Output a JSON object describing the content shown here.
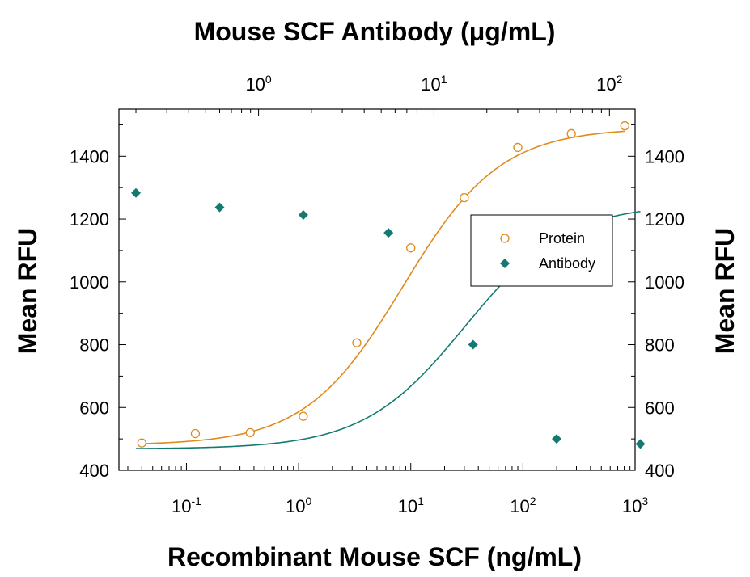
{
  "chart_data": {
    "type": "scatter",
    "title": "Mouse SCF Antibody (μg/mL)",
    "xlabel": "Recombinant Mouse SCF (ng/mL)",
    "ylabel": "Mean RFU",
    "ylabel_right": "Mean RFU",
    "x_scale": "log",
    "top_x_scale": "log",
    "xlim": [
      0.025,
      1000
    ],
    "top_xlim": [
      0.16,
      140
    ],
    "ylim": [
      400,
      1550
    ],
    "bottom_x_ticks": [
      {
        "value": 0.1,
        "base": "10",
        "exp": "-1"
      },
      {
        "value": 1,
        "base": "10",
        "exp": "0"
      },
      {
        "value": 10,
        "base": "10",
        "exp": "1"
      },
      {
        "value": 100,
        "base": "10",
        "exp": "2"
      },
      {
        "value": 1000,
        "base": "10",
        "exp": "3"
      }
    ],
    "top_x_ticks": [
      {
        "value": 1,
        "base": "10",
        "exp": "0"
      },
      {
        "value": 10,
        "base": "10",
        "exp": "1"
      },
      {
        "value": 100,
        "base": "10",
        "exp": "2"
      }
    ],
    "y_ticks": [
      "400",
      "600",
      "800",
      "1000",
      "1200",
      "1400"
    ],
    "legend_position": "right",
    "grid": false,
    "series": [
      {
        "name": "Protein",
        "axis": "bottom",
        "marker": "open-circle",
        "color": "#e08a1c",
        "points": [
          {
            "x": 0.04,
            "y": 487
          },
          {
            "x": 0.12,
            "y": 517
          },
          {
            "x": 0.37,
            "y": 520
          },
          {
            "x": 1.1,
            "y": 572
          },
          {
            "x": 3.3,
            "y": 806
          },
          {
            "x": 10,
            "y": 1108
          },
          {
            "x": 30,
            "y": 1268
          },
          {
            "x": 90,
            "y": 1428
          },
          {
            "x": 270,
            "y": 1472
          },
          {
            "x": 810,
            "y": 1497
          }
        ],
        "fit": {
          "bottom": 480,
          "top": 1490,
          "ec50": 8.5,
          "hill": 1.0
        }
      },
      {
        "name": "Antibody",
        "axis": "top",
        "marker": "filled-diamond",
        "color": "#137a72",
        "points": [
          {
            "x": 0.2,
            "y": 1283
          },
          {
            "x": 0.6,
            "y": 1237
          },
          {
            "x": 1.8,
            "y": 1213
          },
          {
            "x": 5.5,
            "y": 1156
          },
          {
            "x": 16.7,
            "y": 800
          },
          {
            "x": 50,
            "y": 500
          },
          {
            "x": 150,
            "y": 484
          }
        ],
        "fit": {
          "bottom": 468,
          "top": 1248,
          "ec50": 15,
          "hill": 1.5
        }
      }
    ]
  }
}
